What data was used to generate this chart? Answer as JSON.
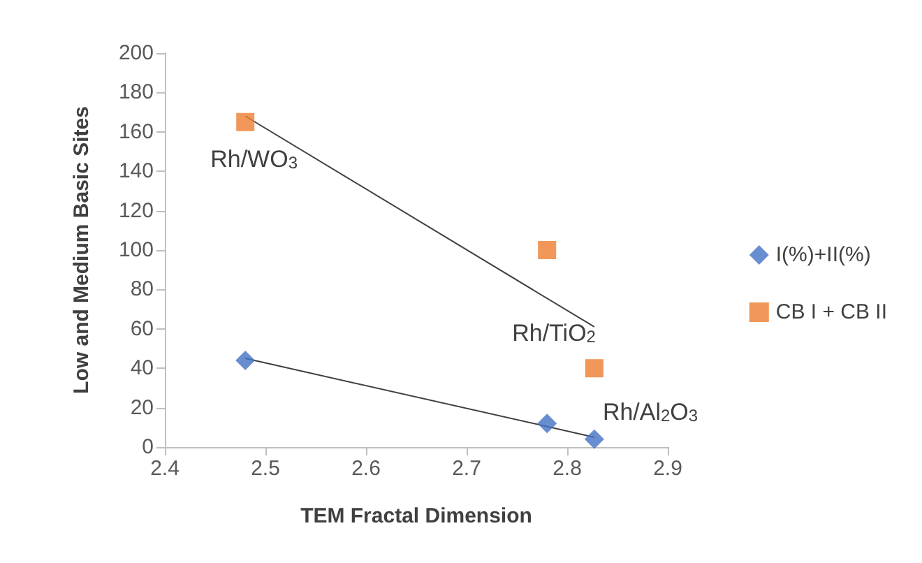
{
  "chart_data": {
    "type": "scatter",
    "xlabel": "TEM Fractal Dimension",
    "ylabel": "Low and Medium Basic Sites",
    "xlim": [
      2.4,
      2.9
    ],
    "xticks": [
      2.4,
      2.5,
      2.6,
      2.7,
      2.8,
      2.9
    ],
    "ylim": [
      0,
      200
    ],
    "yticks": [
      0,
      20,
      40,
      60,
      80,
      100,
      120,
      140,
      160,
      180,
      200
    ],
    "grid": false,
    "legend": "right",
    "series": [
      {
        "name": "I(%)+II(%)",
        "color": "#4472c4",
        "marker": "diamond",
        "x": [
          2.48,
          2.78,
          2.827
        ],
        "values": [
          44,
          12,
          4
        ]
      },
      {
        "name": "CB I + CB II",
        "color": "#ed7d31",
        "marker": "square",
        "x": [
          2.48,
          2.78,
          2.827
        ],
        "values": [
          165,
          100,
          40
        ]
      },
      {
        "type": "line",
        "color": "#404040",
        "marker": "none",
        "x": [
          2.48,
          2.827
        ],
        "values": [
          45,
          5
        ]
      },
      {
        "type": "line",
        "color": "#404040",
        "marker": "none",
        "x": [
          2.48,
          2.827
        ],
        "values": [
          168,
          61
        ]
      }
    ],
    "annotations": [
      {
        "text": "Rh/WO$_{3}$",
        "x": 2.48,
        "y": 165
      },
      {
        "text": "Rh/TiO$_{2}$",
        "x": 2.78,
        "y": 100
      },
      {
        "text": "Rh/Al$_{2}$O$_{3}$",
        "x": 2.827,
        "y": 4
      }
    ]
  }
}
